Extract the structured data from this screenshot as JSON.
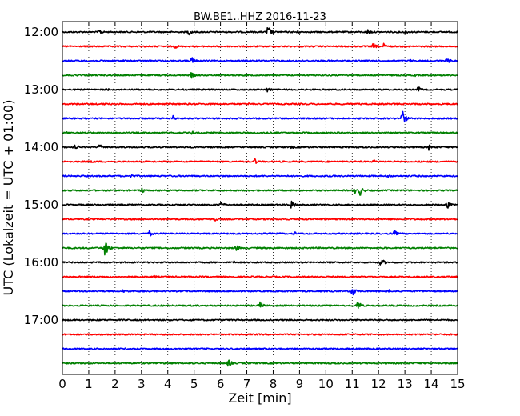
{
  "chart_data": {
    "type": "line",
    "title": "BW.BE1..HHZ 2016-11-23",
    "xlabel": "Zeit  [min]",
    "ylabel": "UTC (Lokalzeit = UTC + 01:00)",
    "xlim": [
      0,
      15
    ],
    "x_ticks": [
      "0",
      "1",
      "2",
      "3",
      "4",
      "5",
      "6",
      "7",
      "8",
      "9",
      "10",
      "11",
      "12",
      "13",
      "14",
      "15"
    ],
    "y_ticks": [
      "12:00",
      "13:00",
      "14:00",
      "15:00",
      "16:00",
      "17:00"
    ],
    "vertical_grid": "dotted",
    "color_cycle": [
      "#000000",
      "#ff0000",
      "#0000ff",
      "#008000"
    ],
    "traces": [
      {
        "start": "12:00",
        "color": "#000000",
        "events": [
          [
            1.4,
            0.3
          ],
          [
            4.8,
            0.3
          ],
          [
            7.8,
            0.6
          ],
          [
            8.9,
            0.2
          ],
          [
            11.6,
            0.3
          ],
          [
            13.0,
            0.2
          ]
        ]
      },
      {
        "start": "12:15",
        "color": "#ff0000",
        "events": [
          [
            4.3,
            0.2
          ],
          [
            11.8,
            0.3
          ],
          [
            12.2,
            0.3
          ]
        ]
      },
      {
        "start": "12:30",
        "color": "#0000ff",
        "events": [
          [
            2.3,
            0.15
          ],
          [
            4.9,
            0.4
          ],
          [
            13.2,
            0.15
          ],
          [
            14.6,
            0.3
          ]
        ]
      },
      {
        "start": "12:45",
        "color": "#008000",
        "events": [
          [
            4.9,
            0.3
          ],
          [
            13.4,
            0.15
          ]
        ]
      },
      {
        "start": "13:00",
        "color": "#000000",
        "events": [
          [
            1.7,
            0.15
          ],
          [
            7.8,
            0.3
          ],
          [
            13.5,
            0.3
          ]
        ]
      },
      {
        "start": "13:15",
        "color": "#ff0000",
        "events": [
          [
            1.5,
            0.15
          ],
          [
            7.1,
            0.15
          ]
        ]
      },
      {
        "start": "13:30",
        "color": "#0000ff",
        "events": [
          [
            4.2,
            0.3
          ],
          [
            12.9,
            0.8
          ]
        ]
      },
      {
        "start": "13:45",
        "color": "#008000",
        "events": [
          [
            0.2,
            0.15
          ],
          [
            4.9,
            0.2
          ],
          [
            15.0,
            0.2
          ]
        ]
      },
      {
        "start": "14:00",
        "color": "#000000",
        "events": [
          [
            0.5,
            0.3
          ],
          [
            1.4,
            0.3
          ],
          [
            8.7,
            0.15
          ],
          [
            13.9,
            0.3
          ]
        ]
      },
      {
        "start": "14:15",
        "color": "#ff0000",
        "events": [
          [
            1.1,
            0.2
          ],
          [
            7.3,
            0.3
          ],
          [
            11.8,
            0.2
          ]
        ]
      },
      {
        "start": "14:30",
        "color": "#0000ff",
        "events": [
          [
            2.6,
            0.2
          ],
          [
            12.4,
            0.2
          ]
        ]
      },
      {
        "start": "14:45",
        "color": "#008000",
        "events": [
          [
            3.0,
            0.3
          ],
          [
            11.1,
            0.3
          ],
          [
            11.3,
            0.5
          ]
        ]
      },
      {
        "start": "15:00",
        "color": "#000000",
        "events": [
          [
            6.0,
            0.4
          ],
          [
            8.7,
            0.5
          ],
          [
            14.6,
            0.4
          ]
        ]
      },
      {
        "start": "15:15",
        "color": "#ff0000",
        "events": [
          [
            5.8,
            0.2
          ]
        ]
      },
      {
        "start": "15:30",
        "color": "#0000ff",
        "events": [
          [
            3.3,
            0.3
          ],
          [
            8.8,
            0.2
          ],
          [
            12.6,
            0.3
          ]
        ]
      },
      {
        "start": "15:45",
        "color": "#008000",
        "events": [
          [
            1.6,
            0.9
          ],
          [
            6.6,
            0.3
          ]
        ]
      },
      {
        "start": "16:00",
        "color": "#000000",
        "events": [
          [
            6.5,
            0.15
          ],
          [
            12.1,
            0.4
          ]
        ]
      },
      {
        "start": "16:15",
        "color": "#ff0000",
        "events": [
          [
            3.5,
            0.15
          ],
          [
            9.7,
            0.15
          ]
        ]
      },
      {
        "start": "16:30",
        "color": "#0000ff",
        "events": [
          [
            2.3,
            0.15
          ],
          [
            3.0,
            0.15
          ],
          [
            11.0,
            0.5
          ],
          [
            12.4,
            0.15
          ]
        ]
      },
      {
        "start": "16:45",
        "color": "#008000",
        "events": [
          [
            7.5,
            0.4
          ],
          [
            11.2,
            0.5
          ]
        ]
      },
      {
        "start": "17:00",
        "color": "#000000",
        "events": []
      },
      {
        "start": "17:15",
        "color": "#ff0000",
        "events": []
      },
      {
        "start": "17:30",
        "color": "#0000ff",
        "events": []
      },
      {
        "start": "17:45",
        "color": "#008000",
        "events": [
          [
            6.3,
            0.4
          ]
        ]
      }
    ]
  }
}
